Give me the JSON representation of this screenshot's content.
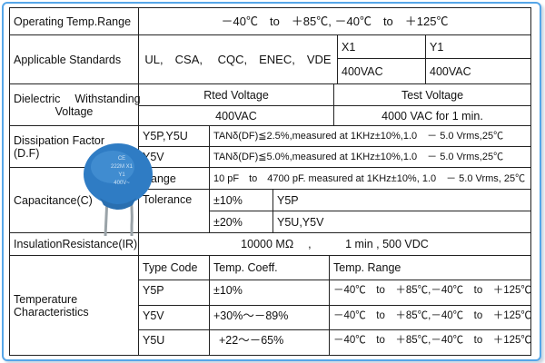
{
  "rows": {
    "operating_temp": {
      "label": "Operating Temp.Range",
      "value": "－40℃　to　＋85℃, －40℃　to　＋125℃"
    },
    "standards": {
      "label": "Applicable Standards",
      "list": "UL,　CSA,　 CQC,　ENEC,　VDE",
      "x1": "X1",
      "x1_v": "400VAC",
      "y1": "Y1",
      "y1_v": "400VAC"
    },
    "dielectric": {
      "label_line1": "Dielectric　 Withstanding",
      "label_line2": "Voltage",
      "rated_hdr": "Rted Voltage",
      "test_hdr": "Test Voltage",
      "rated_v": "400VAC",
      "test_v": "4000 VAC for 1 min."
    },
    "dissipation": {
      "label_line1": "Dissipation Factor",
      "label_line2": "(D.F)",
      "r1_type": "Y5P,Y5U",
      "r1_text": "TANδ(DF)≦2.5%,measured at 1KHz±10%,1.0　－ 5.0 Vrms,25℃",
      "r2_type": "Y5V",
      "r2_text": "TANδ(DF)≦5.0%,measured at 1KHz±10%,1.0　－ 5.0 Vrms,25℃"
    },
    "capacitance": {
      "label": "Capacitance(C)",
      "range_lbl": "Range",
      "range_text": "10 pF　to　4700 pF. measured at 1KHz±10%, 1.0　－ 5.0 Vrms, 25℃",
      "tol_lbl": "Tolerance",
      "t1": "±10%",
      "t1_type": "Y5P",
      "t2": "±20%",
      "t2_type": "Y5U,Y5V"
    },
    "insulation": {
      "label": "InsulationResistance(IR)",
      "value": "10000 MΩ　 ,　　　1 min , 500 VDC"
    },
    "temperature": {
      "label_line1": "Temperature",
      "label_line2": "Characteristics",
      "h_type": "Type Code",
      "h_coeff": "Temp. Coeff.",
      "h_range": "Temp. Range",
      "rows": [
        {
          "type": "Y5P",
          "coeff": "±10%",
          "range": "－40℃　to　＋85℃,－40℃　to　＋125℃"
        },
        {
          "type": "Y5V",
          "coeff": "+30%～－89%",
          "range": "－40℃　to　＋85℃,－40℃　to　＋125℃"
        },
        {
          "type": "Y5U",
          "coeff": "+22～－65%",
          "range": "－40℃　to　＋85℃,－40℃　to　＋125℃"
        }
      ]
    }
  },
  "capacitor_marking": {
    "line1": "CE",
    "line2": "222M X1",
    "line3": "Y1",
    "line4": "400V~"
  },
  "colors": {
    "frame": "#56a6e8",
    "capacitor": "#2f7cc4",
    "leads": "#9aa3a8"
  }
}
